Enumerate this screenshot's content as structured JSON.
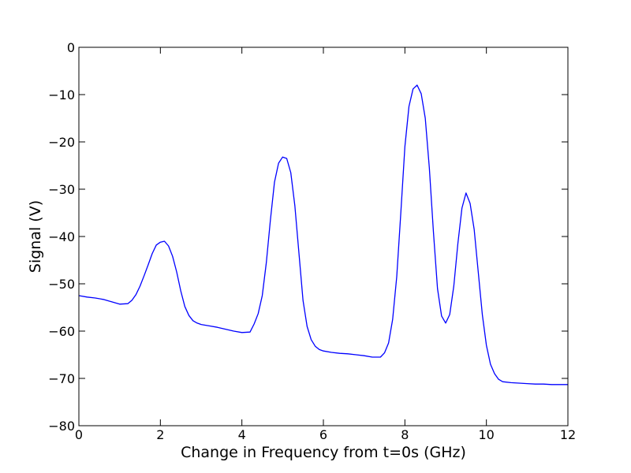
{
  "chart_data": {
    "type": "line",
    "title": "",
    "xlabel": "Change in Frequency from t=0s (GHz)",
    "ylabel": "Signal (V)",
    "xlim": [
      0,
      12
    ],
    "ylim": [
      -80,
      0
    ],
    "xticks": [
      0,
      2,
      4,
      6,
      8,
      10,
      12
    ],
    "yticks": [
      0,
      -10,
      -20,
      -30,
      -40,
      -50,
      -60,
      -70,
      -80
    ],
    "xtick_labels": [
      "0",
      "2",
      "4",
      "6",
      "8",
      "10",
      "12"
    ],
    "ytick_labels": [
      "0",
      "−10",
      "−20",
      "−30",
      "−40",
      "−50",
      "−60",
      "−70",
      "−80"
    ],
    "grid": false,
    "legend": "none",
    "line_color": "#0000ff",
    "series": [
      {
        "x": [
          0.0,
          0.2,
          0.4,
          0.6,
          0.8,
          1.0,
          1.2,
          1.3,
          1.4,
          1.5,
          1.6,
          1.7,
          1.8,
          1.9,
          2.0,
          2.1,
          2.2,
          2.3,
          2.4,
          2.5,
          2.6,
          2.7,
          2.8,
          2.9,
          3.0,
          3.2,
          3.4,
          3.6,
          3.8,
          4.0,
          4.2,
          4.3,
          4.4,
          4.5,
          4.6,
          4.7,
          4.8,
          4.9,
          5.0,
          5.1,
          5.2,
          5.3,
          5.4,
          5.5,
          5.6,
          5.7,
          5.8,
          5.9,
          6.0,
          6.2,
          6.4,
          6.6,
          6.8,
          7.0,
          7.2,
          7.4,
          7.5,
          7.6,
          7.7,
          7.8,
          7.9,
          8.0,
          8.1,
          8.2,
          8.3,
          8.4,
          8.5,
          8.6,
          8.7,
          8.8,
          8.9,
          9.0,
          9.1,
          9.2,
          9.3,
          9.4,
          9.5,
          9.6,
          9.7,
          9.8,
          9.9,
          10.0,
          10.1,
          10.2,
          10.3,
          10.4,
          10.6,
          10.8,
          11.0,
          11.2,
          11.4,
          11.6,
          11.8,
          12.0
        ],
        "y": [
          -52.5,
          -52.8,
          -53.0,
          -53.3,
          -53.8,
          -54.3,
          -54.2,
          -53.5,
          -52.3,
          -50.5,
          -48.3,
          -46.0,
          -43.6,
          -41.8,
          -41.2,
          -41.0,
          -42.0,
          -44.2,
          -47.5,
          -51.5,
          -54.8,
          -56.7,
          -57.8,
          -58.3,
          -58.6,
          -58.9,
          -59.2,
          -59.6,
          -60.0,
          -60.3,
          -60.2,
          -58.5,
          -56.3,
          -52.5,
          -45.5,
          -36.5,
          -28.5,
          -24.5,
          -23.2,
          -23.5,
          -26.5,
          -33.5,
          -43.5,
          -53.5,
          -59.0,
          -61.8,
          -63.2,
          -63.9,
          -64.2,
          -64.5,
          -64.7,
          -64.8,
          -65.0,
          -65.2,
          -65.5,
          -65.5,
          -64.6,
          -62.5,
          -57.5,
          -48.5,
          -35.0,
          -21.0,
          -12.5,
          -8.8,
          -8.0,
          -9.8,
          -15.0,
          -25.5,
          -39.0,
          -51.0,
          -56.8,
          -58.3,
          -56.5,
          -50.5,
          -41.5,
          -34.0,
          -30.8,
          -33.0,
          -38.5,
          -47.5,
          -56.5,
          -63.0,
          -67.0,
          -69.0,
          -70.2,
          -70.7,
          -70.9,
          -71.0,
          -71.1,
          -71.2,
          -71.2,
          -71.3,
          -71.3,
          -71.3
        ]
      }
    ]
  }
}
